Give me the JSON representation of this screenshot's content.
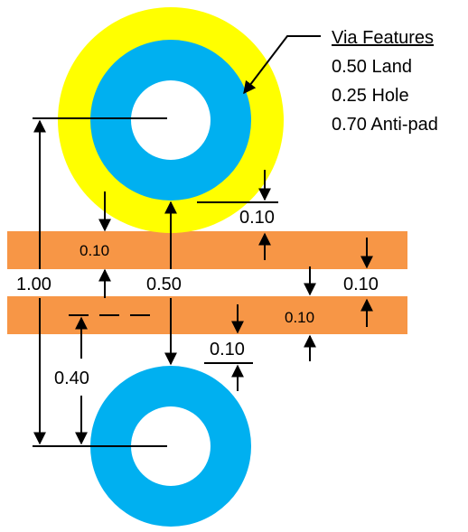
{
  "legend": {
    "title": "Via Features",
    "items": [
      "0.50 Land",
      "0.25 Hole",
      "0.70 Anti-pad"
    ]
  },
  "dimensions": {
    "antipad_to_trace": "0.10",
    "trace_top_width": "0.10",
    "pitch": "1.00",
    "land_diameter": "0.50",
    "trace_gap": "0.10",
    "trace_bottom_width": "0.10",
    "land_to_trace": "0.10",
    "offset": "0.40"
  },
  "colors": {
    "antipad": "#FFFF00",
    "land": "#00B0F0",
    "hole": "#FFFFFF",
    "trace": "#F79646",
    "line": "#000000"
  }
}
